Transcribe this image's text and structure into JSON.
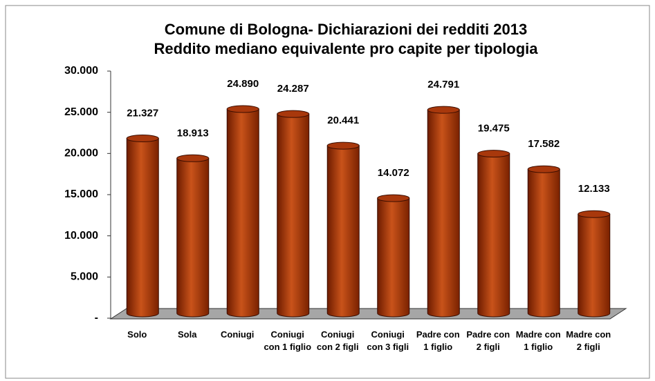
{
  "chart_data": {
    "type": "bar",
    "title": "Comune di Bologna- Dichiarazioni dei redditi 2013",
    "subtitle": "Reddito mediano equivalente pro capite per tipologia",
    "categories": [
      "Solo",
      "Sola",
      "Coniugi",
      "Coniugi con 1 figlio",
      "Coniugi con 2 figli",
      "Coniugi con 3 figli",
      "Padre con 1 figlio",
      "Padre con 2 figli",
      "Madre con 1 figlio",
      "Madre con 2 figli"
    ],
    "values": [
      21327,
      18913,
      24890,
      24287,
      20441,
      14072,
      24791,
      19475,
      17582,
      12133
    ],
    "value_labels": [
      "21.327",
      "18.913",
      "24.890",
      "24.287",
      "20.441",
      "14.072",
      "24.791",
      "19.475",
      "17.582",
      "12.133"
    ],
    "color": "#b83a0a",
    "ylim": [
      0,
      30000
    ],
    "yticks": [
      {
        "value": 0,
        "label": "-"
      },
      {
        "value": 5000,
        "label": "5.000"
      },
      {
        "value": 10000,
        "label": "10.000"
      },
      {
        "value": 15000,
        "label": "15.000"
      },
      {
        "value": 20000,
        "label": "20.000"
      },
      {
        "value": 25000,
        "label": "25.000"
      },
      {
        "value": 30000,
        "label": "30.000"
      }
    ],
    "grid": false
  }
}
